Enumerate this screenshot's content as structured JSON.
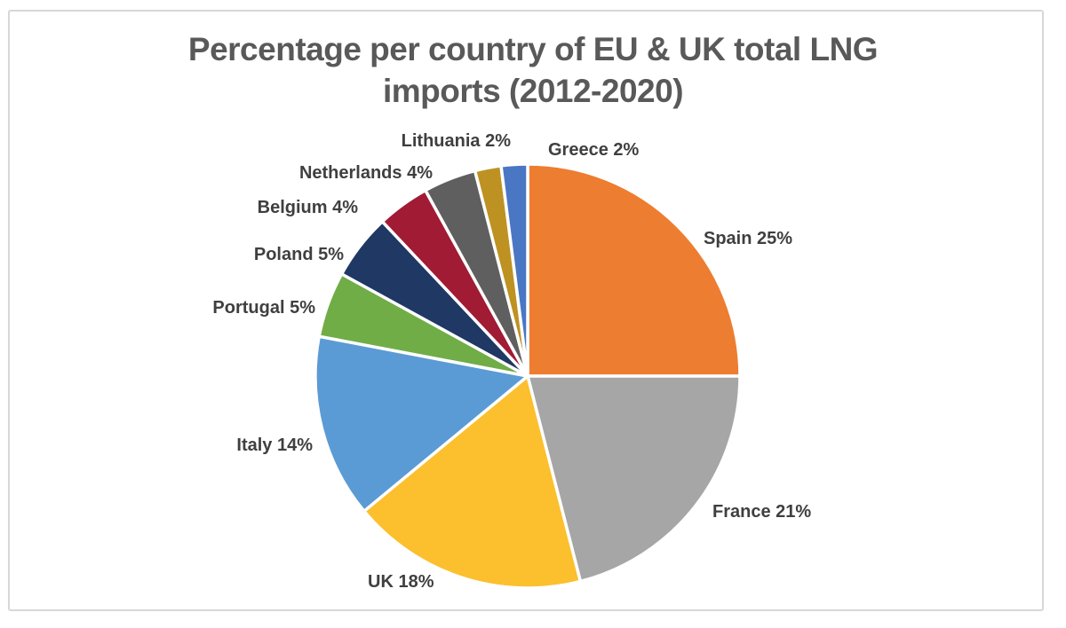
{
  "page": {
    "background_color": "#ffffff",
    "frame_border_color": "#d7d7d7"
  },
  "chart_data": {
    "type": "pie",
    "title": "Percentage per country of EU & UK total LNG imports (2012-2020)",
    "title_color": "#595959",
    "label_color": "#3f3f3f",
    "legend": "none",
    "data_labels_position": "outside-end",
    "data_label_format": "{category} {value}%",
    "direction": "clockwise",
    "start_angle_deg": 0,
    "categories": [
      "Spain",
      "France",
      "UK",
      "Italy",
      "Portugal",
      "Poland",
      "Belgium",
      "Netherlands",
      "Lithuania",
      "Greece"
    ],
    "values": [
      25,
      21,
      18,
      14,
      5,
      5,
      4,
      4,
      2,
      2
    ],
    "colors": [
      "#ED7D31",
      "#A6A6A6",
      "#FCBF2D",
      "#5B9BD5",
      "#70AD47",
      "#1F3864",
      "#A01B33",
      "#5F5F5F",
      "#BD9222",
      "#4A77C4"
    ],
    "data_labels": [
      "Spain 25%",
      "France 21%",
      "UK 18%",
      "Italy 14%",
      "Portugal 5%",
      "Poland 5%",
      "Belgium 4%",
      "Netherlands 4%",
      "Lithuania 2%",
      "Greece 2%"
    ]
  }
}
